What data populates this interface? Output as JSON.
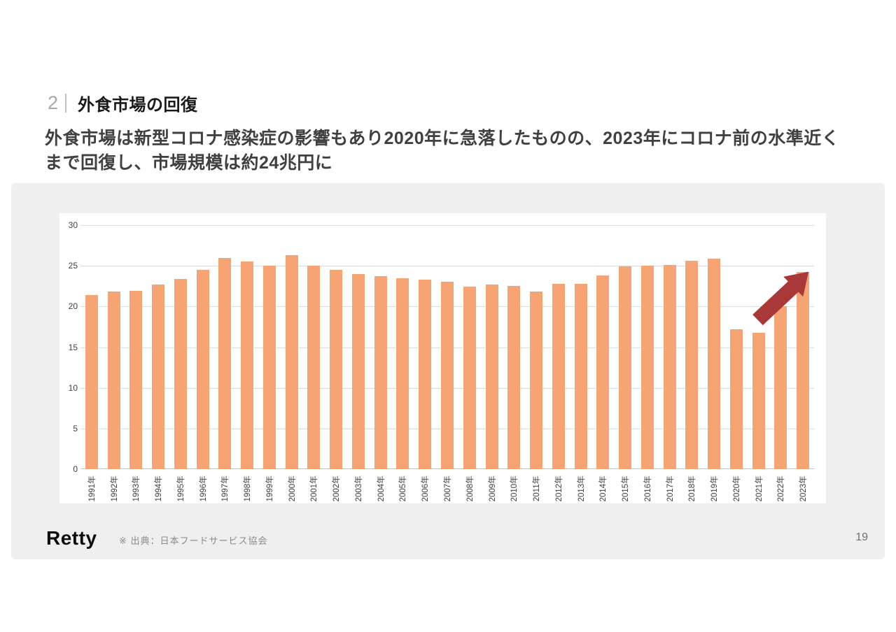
{
  "header": {
    "section_number": "2",
    "title": "外食市場の回復",
    "subtitle": "外食市場は新型コロナ感染症の影響もあり2020年に急落したものの、2023年にコロナ前の水準近くまで回復し、市場規模は約24兆円に"
  },
  "chart_data": {
    "type": "bar",
    "categories": [
      "1991年",
      "1992年",
      "1993年",
      "1994年",
      "1995年",
      "1996年",
      "1997年",
      "1998年",
      "1999年",
      "2000年",
      "2001年",
      "2002年",
      "2003年",
      "2004年",
      "2005年",
      "2006年",
      "2007年",
      "2008年",
      "2009年",
      "2010年",
      "2011年",
      "2012年",
      "2013年",
      "2014年",
      "2015年",
      "2016年",
      "2017年",
      "2018年",
      "2019年",
      "2020年",
      "2021年",
      "2022年",
      "2023年"
    ],
    "values": [
      21.4,
      21.8,
      21.9,
      22.7,
      23.4,
      24.5,
      26.0,
      25.5,
      25.0,
      26.3,
      25.0,
      24.5,
      24.0,
      23.7,
      23.5,
      23.3,
      23.0,
      22.4,
      22.7,
      22.5,
      21.8,
      22.8,
      22.8,
      23.8,
      24.9,
      25.0,
      25.1,
      25.6,
      25.9,
      17.2,
      16.8,
      20.0,
      24.2
    ],
    "ylim": [
      0,
      30
    ],
    "yticks": [
      0,
      5,
      10,
      15,
      20,
      25,
      30
    ],
    "grid": true,
    "legend": "none",
    "bar_color": "#F5A573",
    "annotation": {
      "type": "up-right-arrow",
      "color": "#A93939",
      "location": "between 2021年 and 2023年 bars"
    }
  },
  "colors": {
    "panel_bg": "#EFEFEF",
    "card_bg": "#FFFFFF",
    "gridline": "#DCDCDC",
    "axis_line": "#C4C4C4",
    "bar": "#F5A573",
    "arrow": "#A93939"
  },
  "footer": {
    "logo": "Retty",
    "source": "※ 出典：日本フードサービス協会",
    "page_number": "19"
  }
}
